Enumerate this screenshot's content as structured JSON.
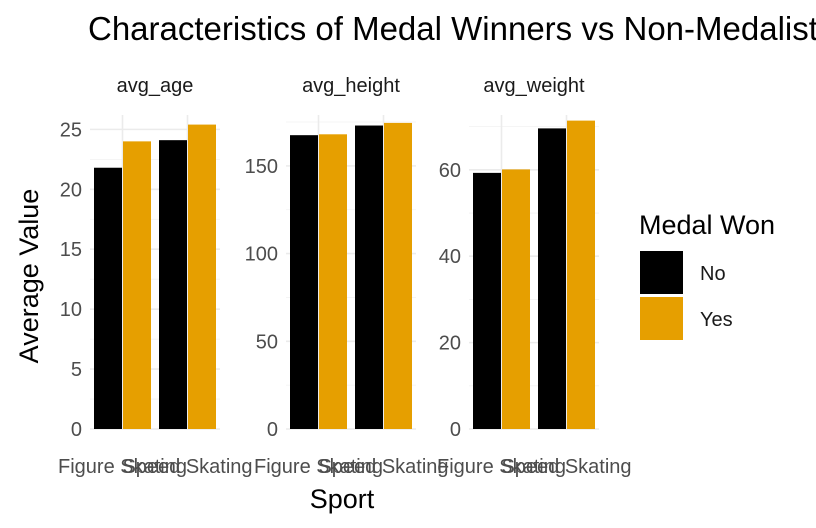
{
  "chart_data": {
    "type": "bar",
    "title": "Characteristics of Medal Winners vs Non-Medalists",
    "xlabel": "Sport",
    "ylabel": "Average Value",
    "categories": [
      "Figure Skating",
      "Speed Skating"
    ],
    "legend": {
      "title": "Medal Won",
      "position": "right",
      "entries": [
        {
          "name": "No",
          "color": "#000000"
        },
        {
          "name": "Yes",
          "color": "#E69F00"
        }
      ]
    },
    "grid": true,
    "facets": [
      {
        "label": "avg_age",
        "ylim": [
          0,
          26.2
        ],
        "yticks": [
          0,
          5,
          10,
          15,
          20,
          25
        ],
        "series": [
          {
            "name": "No",
            "values": [
              21.8,
              24.1
            ]
          },
          {
            "name": "Yes",
            "values": [
              24.0,
              25.4
            ]
          }
        ]
      },
      {
        "label": "avg_height",
        "ylim": [
          0,
          179
        ],
        "yticks": [
          0,
          50,
          100,
          150
        ],
        "series": [
          {
            "name": "No",
            "values": [
              167.5,
              173.0
            ]
          },
          {
            "name": "Yes",
            "values": [
              168.0,
              174.5
            ]
          }
        ]
      },
      {
        "label": "avg_weight",
        "ylim": [
          0,
          72.7
        ],
        "yticks": [
          0,
          20,
          40,
          60
        ],
        "series": [
          {
            "name": "No",
            "values": [
              59.3,
              69.6
            ]
          },
          {
            "name": "Yes",
            "values": [
              60.1,
              71.4
            ]
          }
        ]
      }
    ]
  }
}
